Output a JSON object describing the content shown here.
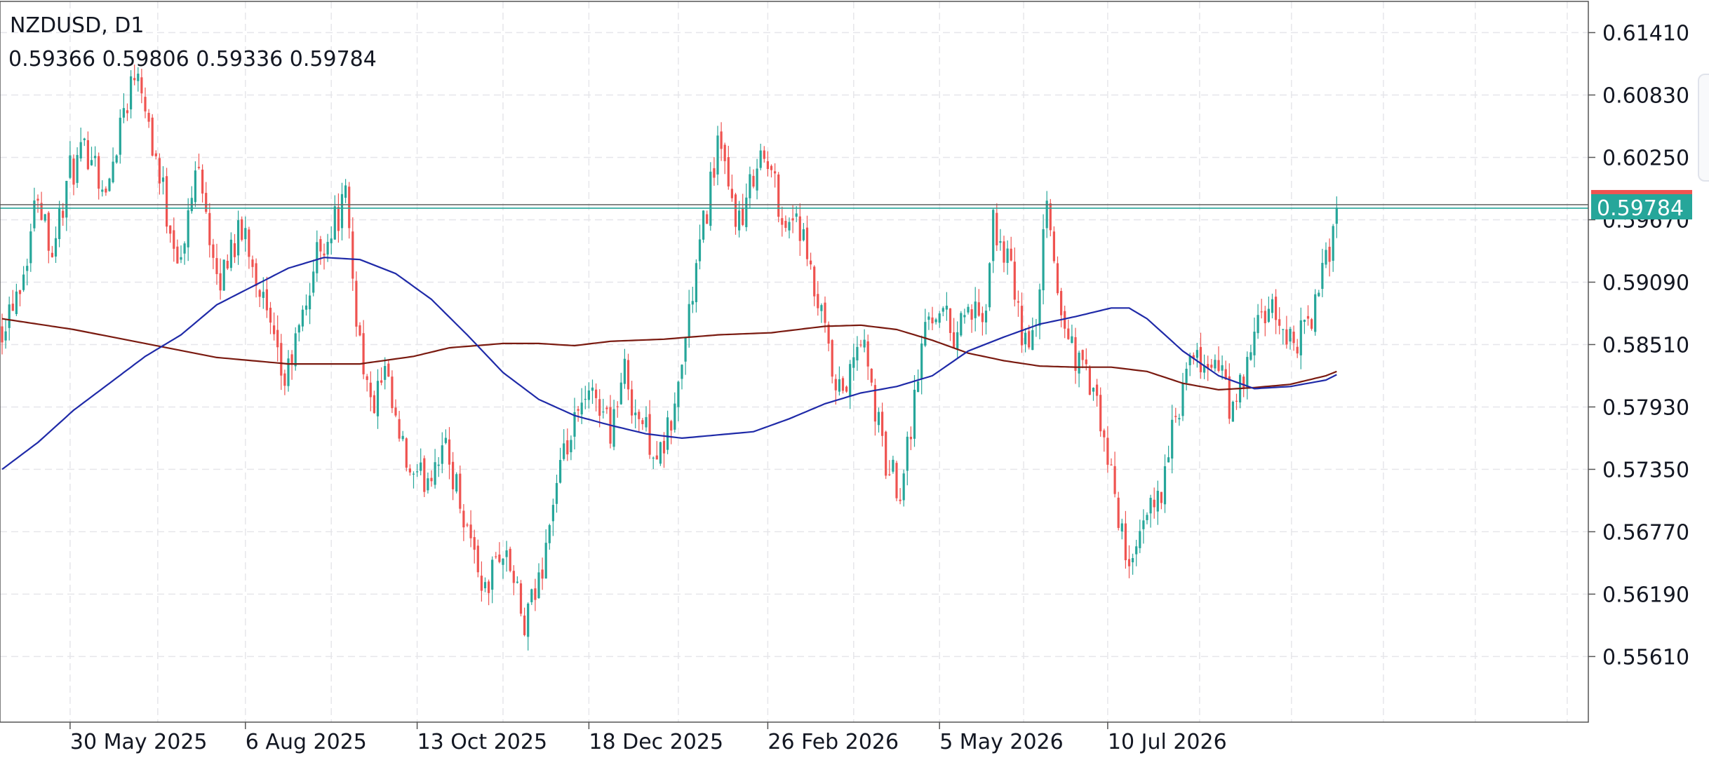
{
  "chart_data": {
    "type": "candlestick",
    "symbol": "NZDUSD, D1",
    "ohlc_readout": "0.59366 0.59806 0.59336 0.59784",
    "last_price_label": "0.59784",
    "last_price": 0.59784,
    "ylim": [
      0.55,
      0.617
    ],
    "y_ticks": [
      "0.61410",
      "0.60830",
      "0.60250",
      "0.59670",
      "0.59090",
      "0.58510",
      "0.57930",
      "0.57350",
      "0.56770",
      "0.56190",
      "0.55610"
    ],
    "x_tick_labels": [
      "30 May 2025",
      "6 Aug 2025",
      "13 Oct 2025",
      "18 Dec 2025",
      "26 Feb 2026",
      "5 May 2026",
      "10 Jul 2026"
    ],
    "bar_count": 380,
    "x_tick_bar_index": [
      19,
      68,
      116,
      164,
      214,
      262,
      309
    ],
    "grid": true,
    "colors": {
      "up": "#26a69a",
      "down": "#ef5350",
      "grid": "#e6e6ea",
      "frame": "#555555",
      "ma_fast": "#1f2aa8",
      "ma_slow": "#7a1a10",
      "price_line": "#6b6b6b",
      "price_label_bg": "#26a69a",
      "price_label_top": "#ef5350"
    },
    "price_path": [
      [
        0,
        0.587
      ],
      [
        6,
        0.592
      ],
      [
        10,
        0.5995
      ],
      [
        14,
        0.594
      ],
      [
        19,
        0.601
      ],
      [
        25,
        0.6035
      ],
      [
        29,
        0.5985
      ],
      [
        33,
        0.606
      ],
      [
        38,
        0.6115
      ],
      [
        42,
        0.604
      ],
      [
        46,
        0.5975
      ],
      [
        50,
        0.5925
      ],
      [
        55,
        0.603
      ],
      [
        60,
        0.59
      ],
      [
        64,
        0.5945
      ],
      [
        68,
        0.5955
      ],
      [
        72,
        0.5905
      ],
      [
        76,
        0.5845
      ],
      [
        79,
        0.5815
      ],
      [
        84,
        0.5875
      ],
      [
        88,
        0.5935
      ],
      [
        92,
        0.596
      ],
      [
        96,
        0.5985
      ],
      [
        99,
        0.588
      ],
      [
        103,
        0.579
      ],
      [
        107,
        0.582
      ],
      [
        111,
        0.576
      ],
      [
        115,
        0.572
      ],
      [
        119,
        0.573
      ],
      [
        123,
        0.576
      ],
      [
        127,
        0.572
      ],
      [
        131,
        0.567
      ],
      [
        135,
        0.562
      ],
      [
        139,
        0.566
      ],
      [
        142,
        0.5645
      ],
      [
        146,
        0.5585
      ],
      [
        150,
        0.563
      ],
      [
        154,
        0.5705
      ],
      [
        158,
        0.5755
      ],
      [
        162,
        0.579
      ],
      [
        166,
        0.5805
      ],
      [
        170,
        0.5775
      ],
      [
        174,
        0.5825
      ],
      [
        177,
        0.579
      ],
      [
        180,
        0.577
      ],
      [
        184,
        0.5745
      ],
      [
        188,
        0.579
      ],
      [
        192,
        0.588
      ],
      [
        196,
        0.596
      ],
      [
        200,
        0.604
      ],
      [
        203,
        0.599
      ],
      [
        207,
        0.596
      ],
      [
        211,
        0.603
      ],
      [
        215,
        0.601
      ],
      [
        219,
        0.596
      ],
      [
        222,
        0.5975
      ],
      [
        226,
        0.591
      ],
      [
        230,
        0.586
      ],
      [
        233,
        0.58
      ],
      [
        237,
        0.582
      ],
      [
        240,
        0.586
      ],
      [
        244,
        0.579
      ],
      [
        247,
        0.574
      ],
      [
        251,
        0.572
      ],
      [
        255,
        0.58
      ],
      [
        258,
        0.587
      ],
      [
        262,
        0.589
      ],
      [
        266,
        0.586
      ],
      [
        270,
        0.589
      ],
      [
        274,
        0.586
      ],
      [
        277,
        0.596
      ],
      [
        281,
        0.593
      ],
      [
        285,
        0.586
      ],
      [
        288,
        0.585
      ],
      [
        292,
        0.5975
      ],
      [
        296,
        0.588
      ],
      [
        300,
        0.584
      ],
      [
        304,
        0.5815
      ],
      [
        308,
        0.576
      ],
      [
        312,
        0.569
      ],
      [
        316,
        0.564
      ],
      [
        320,
        0.569
      ],
      [
        324,
        0.572
      ],
      [
        328,
        0.578
      ],
      [
        332,
        0.583
      ],
      [
        336,
        0.5835
      ],
      [
        340,
        0.583
      ],
      [
        344,
        0.5785
      ],
      [
        348,
        0.583
      ],
      [
        352,
        0.588
      ],
      [
        356,
        0.5875
      ],
      [
        360,
        0.5855
      ],
      [
        364,
        0.586
      ],
      [
        368,
        0.59
      ],
      [
        371,
        0.594
      ],
      [
        373,
        0.5978
      ]
    ],
    "ma_fast_path": [
      [
        0,
        0.5735
      ],
      [
        10,
        0.576
      ],
      [
        20,
        0.579
      ],
      [
        30,
        0.5815
      ],
      [
        40,
        0.584
      ],
      [
        50,
        0.586
      ],
      [
        60,
        0.5888
      ],
      [
        70,
        0.5905
      ],
      [
        80,
        0.5922
      ],
      [
        90,
        0.5932
      ],
      [
        100,
        0.593
      ],
      [
        110,
        0.5917
      ],
      [
        120,
        0.5893
      ],
      [
        130,
        0.586
      ],
      [
        140,
        0.5825
      ],
      [
        150,
        0.58
      ],
      [
        160,
        0.5785
      ],
      [
        170,
        0.5776
      ],
      [
        180,
        0.5768
      ],
      [
        190,
        0.5764
      ],
      [
        200,
        0.5767
      ],
      [
        210,
        0.577
      ],
      [
        220,
        0.5782
      ],
      [
        230,
        0.5796
      ],
      [
        240,
        0.5806
      ],
      [
        250,
        0.5812
      ],
      [
        260,
        0.5822
      ],
      [
        270,
        0.5845
      ],
      [
        280,
        0.5858
      ],
      [
        290,
        0.587
      ],
      [
        300,
        0.5877
      ],
      [
        310,
        0.5885
      ],
      [
        315,
        0.5885
      ],
      [
        320,
        0.5875
      ],
      [
        330,
        0.5845
      ],
      [
        340,
        0.5822
      ],
      [
        350,
        0.581
      ],
      [
        360,
        0.5812
      ],
      [
        370,
        0.5818
      ],
      [
        373,
        0.5823
      ]
    ],
    "ma_slow_path": [
      [
        0,
        0.5875
      ],
      [
        20,
        0.5865
      ],
      [
        40,
        0.5852
      ],
      [
        60,
        0.5839
      ],
      [
        80,
        0.5833
      ],
      [
        100,
        0.5833
      ],
      [
        115,
        0.584
      ],
      [
        125,
        0.5848
      ],
      [
        140,
        0.5852
      ],
      [
        150,
        0.5852
      ],
      [
        160,
        0.585
      ],
      [
        170,
        0.5854
      ],
      [
        185,
        0.5856
      ],
      [
        200,
        0.586
      ],
      [
        215,
        0.5862
      ],
      [
        230,
        0.5868
      ],
      [
        240,
        0.5869
      ],
      [
        250,
        0.5865
      ],
      [
        260,
        0.5855
      ],
      [
        270,
        0.5843
      ],
      [
        280,
        0.5836
      ],
      [
        290,
        0.5831
      ],
      [
        300,
        0.583
      ],
      [
        310,
        0.583
      ],
      [
        320,
        0.5826
      ],
      [
        330,
        0.5815
      ],
      [
        340,
        0.5809
      ],
      [
        350,
        0.5811
      ],
      [
        360,
        0.5814
      ],
      [
        370,
        0.5822
      ],
      [
        373,
        0.5826
      ]
    ]
  }
}
